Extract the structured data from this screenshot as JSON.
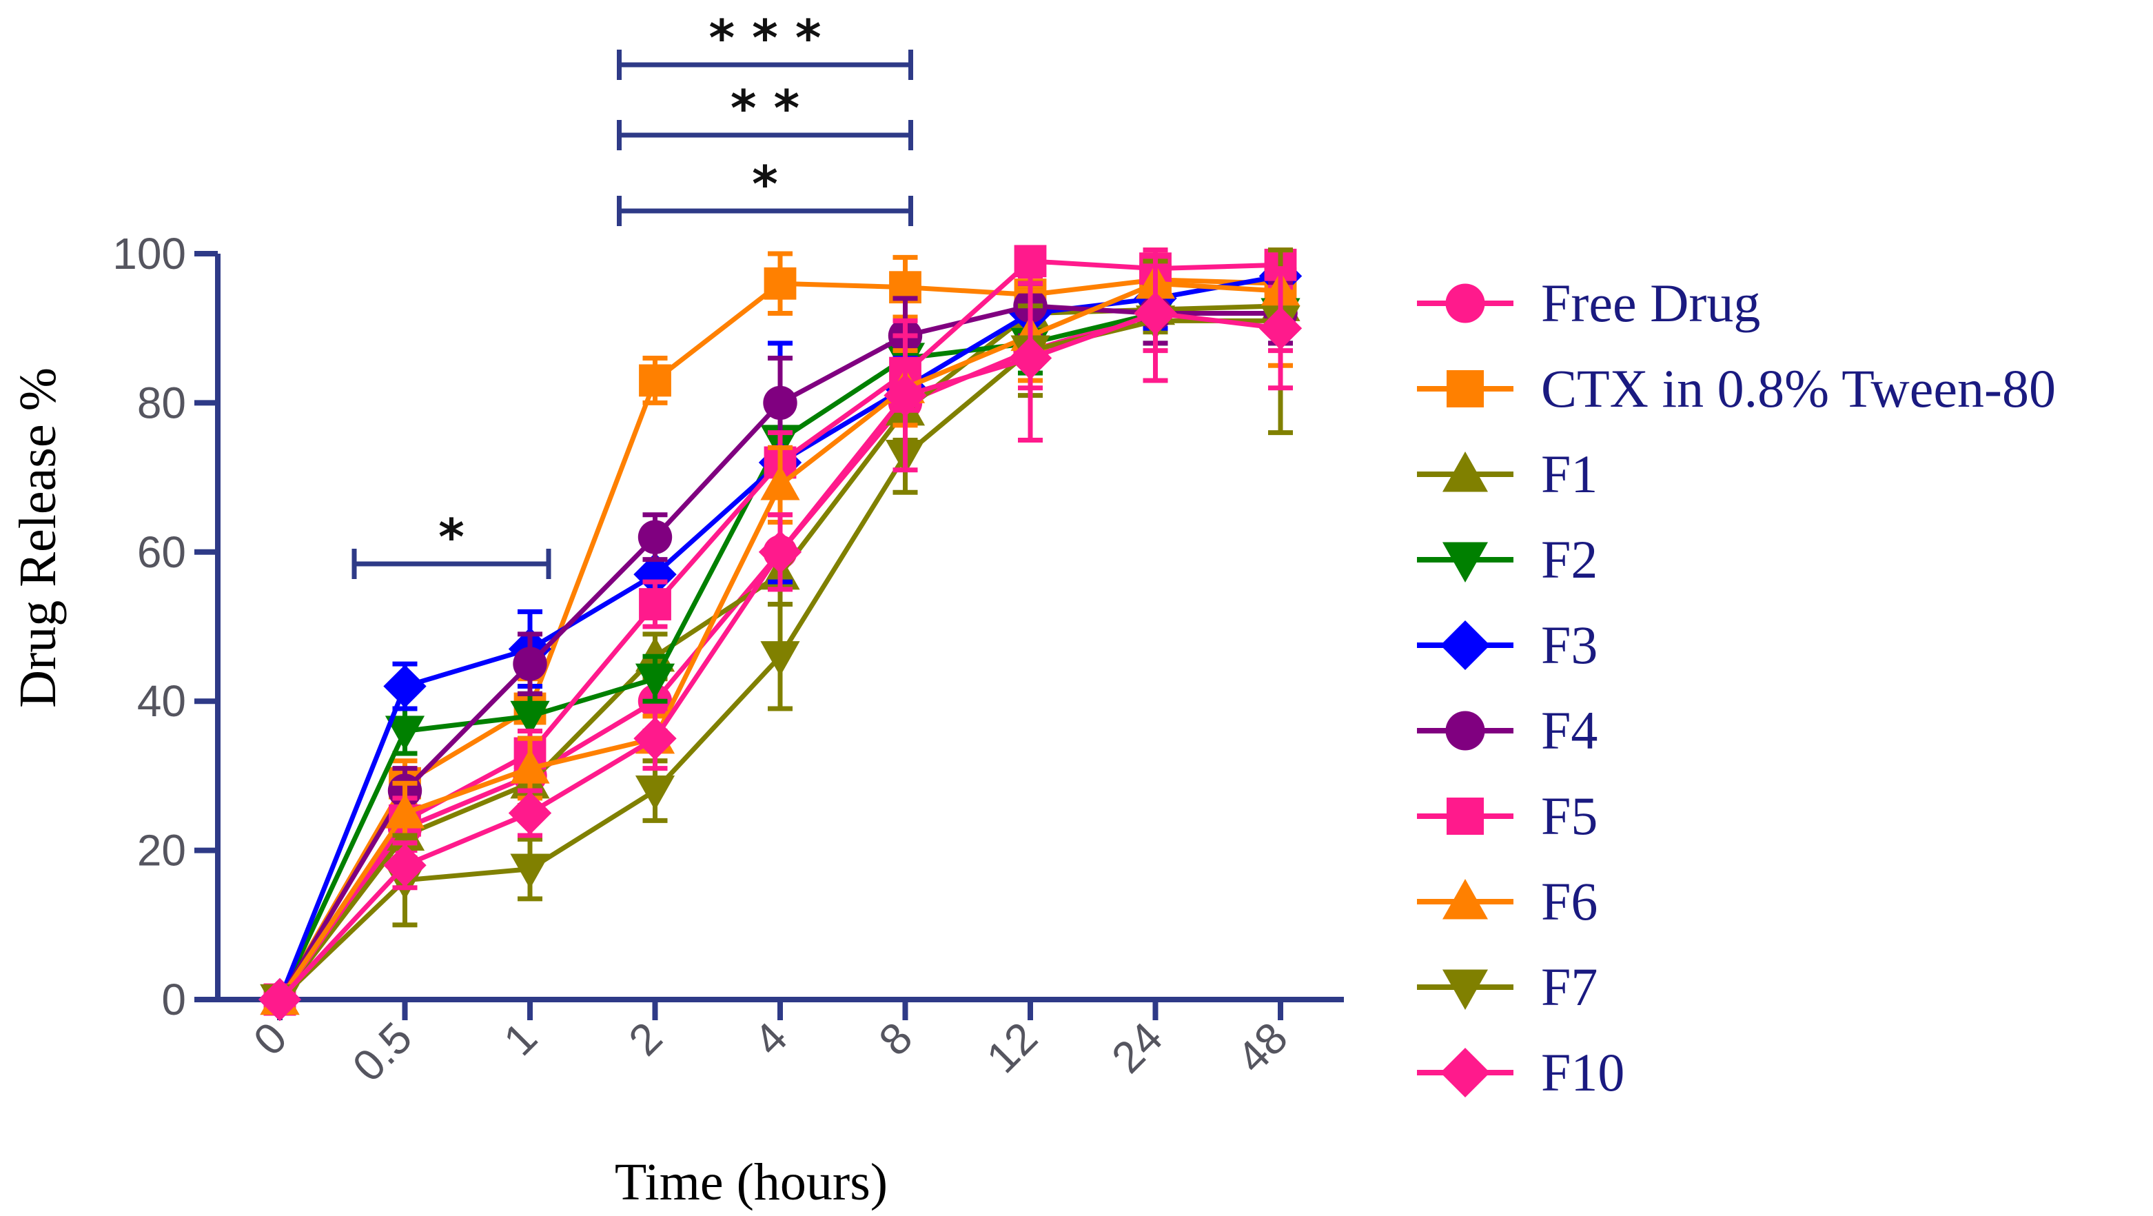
{
  "chart_data": {
    "type": "line",
    "title": "",
    "xlabel": "Time (hours)",
    "ylabel": "Drug Release %",
    "categories": [
      "0",
      "0.5",
      "1",
      "2",
      "4",
      "8",
      "12",
      "24",
      "48"
    ],
    "ylim": [
      0,
      100
    ],
    "yticks": [
      0,
      20,
      40,
      60,
      80,
      100
    ],
    "grid": false,
    "legend_position": "right",
    "axis_color": "#2e3a87",
    "legend_text_color": "#1a1a80",
    "series": [
      {
        "name": "Free Drug",
        "color": "#ff1a8c",
        "marker": "circle",
        "values": [
          0,
          23,
          30,
          40,
          60,
          80,
          87,
          92,
          92
        ],
        "errors": [
          0,
          3,
          4,
          4,
          5,
          5,
          5,
          5,
          5
        ]
      },
      {
        "name": "CTX in 0.8% Tween-80",
        "color": "#ff8000",
        "marker": "square",
        "values": [
          0,
          29,
          39,
          83,
          96,
          95.5,
          94.5,
          96.5,
          96
        ],
        "errors": [
          0,
          3,
          4,
          3,
          4,
          4,
          3,
          3,
          3
        ]
      },
      {
        "name": "F1",
        "color": "#808000",
        "marker": "triangle-up",
        "values": [
          0,
          22,
          29,
          46,
          57,
          79,
          92,
          92.5,
          93
        ],
        "errors": [
          0,
          3,
          3,
          3,
          4,
          4,
          3,
          3,
          3
        ]
      },
      {
        "name": "F2",
        "color": "#008000",
        "marker": "triangle-down",
        "values": [
          0,
          36,
          38,
          43,
          75,
          86,
          88,
          92,
          92
        ],
        "errors": [
          0,
          3,
          3,
          3,
          4,
          4,
          4,
          4,
          4
        ]
      },
      {
        "name": "F3",
        "color": "#0000ff",
        "marker": "diamond",
        "values": [
          0,
          42,
          47,
          57,
          72,
          82,
          92,
          94,
          97
        ],
        "errors": [
          0,
          3,
          5,
          4,
          16,
          4,
          4,
          4,
          4
        ]
      },
      {
        "name": "F4",
        "color": "#800080",
        "marker": "circle",
        "values": [
          0,
          28,
          45,
          62,
          80,
          89,
          93,
          92,
          92
        ],
        "errors": [
          0,
          3,
          4,
          3,
          6,
          5,
          4,
          4,
          4
        ]
      },
      {
        "name": "F5",
        "color": "#ff1a8c",
        "marker": "square",
        "values": [
          0,
          24,
          33,
          53,
          72,
          84,
          99,
          98,
          98.5
        ],
        "errors": [
          0,
          3,
          3,
          3,
          4,
          5,
          3,
          3,
          3
        ]
      },
      {
        "name": "F6",
        "color": "#ff8000",
        "marker": "triangle-up",
        "values": [
          0,
          25,
          31,
          35,
          69,
          82,
          89,
          96,
          95
        ],
        "errors": [
          0,
          4,
          4,
          3,
          5,
          5,
          6,
          5,
          10
        ]
      },
      {
        "name": "F7",
        "color": "#808000",
        "marker": "triangle-down",
        "values": [
          0,
          16,
          17.5,
          28,
          46,
          73,
          87,
          91,
          91
        ],
        "errors": [
          0,
          6,
          4,
          4,
          7,
          5,
          6,
          8,
          15
        ]
      },
      {
        "name": "F10",
        "color": "#ff1a8c",
        "marker": "diamond",
        "values": [
          0,
          18,
          25,
          35,
          60,
          81,
          86,
          92,
          90
        ],
        "errors": [
          0,
          3,
          3,
          4,
          5,
          10,
          11,
          9,
          8
        ]
      }
    ],
    "annotations": [
      {
        "label": "*",
        "from": "0.5",
        "to": "1",
        "height": 1
      },
      {
        "label": "*",
        "from": "2",
        "to": "8",
        "height": 1
      },
      {
        "label": "* *",
        "from": "2",
        "to": "8",
        "height": 2
      },
      {
        "label": "* * *",
        "from": "2",
        "to": "8",
        "height": 3
      }
    ]
  }
}
